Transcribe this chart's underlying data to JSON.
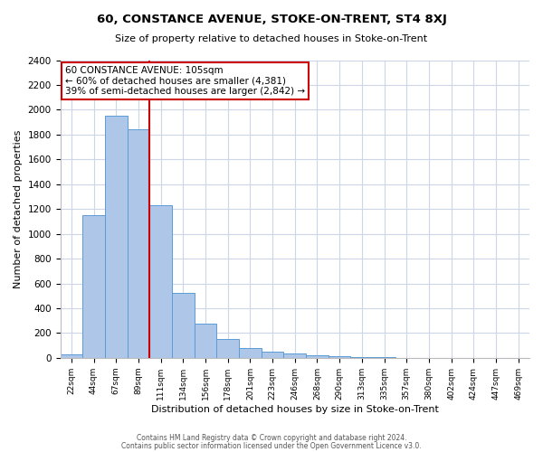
{
  "title": "60, CONSTANCE AVENUE, STOKE-ON-TRENT, ST4 8XJ",
  "subtitle": "Size of property relative to detached houses in Stoke-on-Trent",
  "xlabel": "Distribution of detached houses by size in Stoke-on-Trent",
  "ylabel": "Number of detached properties",
  "bin_labels": [
    "22sqm",
    "44sqm",
    "67sqm",
    "89sqm",
    "111sqm",
    "134sqm",
    "156sqm",
    "178sqm",
    "201sqm",
    "223sqm",
    "246sqm",
    "268sqm",
    "290sqm",
    "313sqm",
    "335sqm",
    "357sqm",
    "380sqm",
    "402sqm",
    "424sqm",
    "447sqm",
    "469sqm"
  ],
  "bar_values": [
    30,
    1150,
    1950,
    1840,
    1230,
    520,
    275,
    150,
    80,
    50,
    35,
    20,
    12,
    7,
    3,
    2,
    1,
    1,
    0,
    0,
    0
  ],
  "bar_color": "#aec6e8",
  "bar_edge_color": "#5b9bd5",
  "property_line_color": "#cc0000",
  "annotation_text": "60 CONSTANCE AVENUE: 105sqm\n← 60% of detached houses are smaller (4,381)\n39% of semi-detached houses are larger (2,842) →",
  "annotation_box_color": "#ffffff",
  "annotation_box_edge_color": "#cc0000",
  "ylim": [
    0,
    2400
  ],
  "yticks": [
    0,
    200,
    400,
    600,
    800,
    1000,
    1200,
    1400,
    1600,
    1800,
    2000,
    2200,
    2400
  ],
  "footer_line1": "Contains HM Land Registry data © Crown copyright and database right 2024.",
  "footer_line2": "Contains public sector information licensed under the Open Government Licence v3.0.",
  "background_color": "#ffffff",
  "grid_color": "#ccd6e8"
}
